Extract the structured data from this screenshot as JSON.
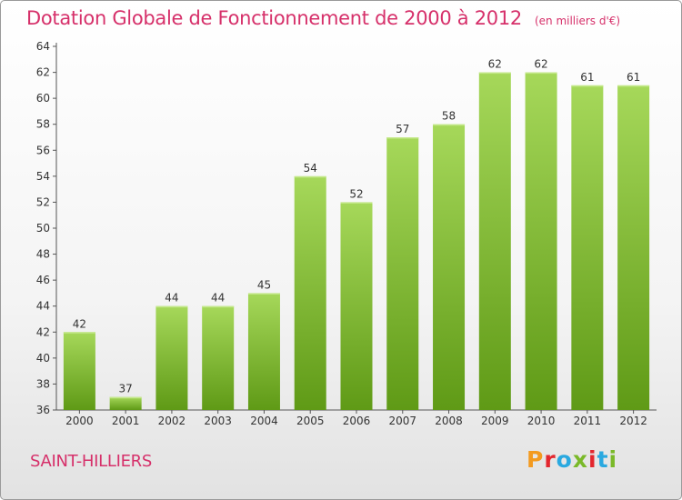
{
  "title": "Dotation Globale de Fonctionnement de 2000 à 2012",
  "subtitle": "(en milliers d'€)",
  "commune": "SAINT-HILLIERS",
  "logo": {
    "letters": [
      "P",
      "r",
      "o",
      "x",
      "i",
      "t",
      "i"
    ],
    "colors": [
      "#f39a1f",
      "#e3272e",
      "#2aa9e0",
      "#7ab929",
      "#e3272e",
      "#2aa9e0",
      "#7ab929"
    ]
  },
  "colors": {
    "title": "#d6306a",
    "bar_light": "#a6d85a",
    "bar_dark": "#5f9a16"
  },
  "chart_data": {
    "type": "bar",
    "categories": [
      "2000",
      "2001",
      "2002",
      "2003",
      "2004",
      "2005",
      "2006",
      "2007",
      "2008",
      "2009",
      "2010",
      "2011",
      "2012"
    ],
    "values": [
      42,
      37,
      44,
      44,
      45,
      54,
      52,
      57,
      58,
      62,
      62,
      61,
      61
    ],
    "title": "Dotation Globale de Fonctionnement de 2000 à 2012",
    "ylim": [
      36,
      64
    ],
    "yticks": [
      36,
      38,
      40,
      42,
      44,
      46,
      48,
      50,
      52,
      54,
      56,
      58,
      60,
      62,
      64
    ],
    "grid": false,
    "data_labels": true
  }
}
